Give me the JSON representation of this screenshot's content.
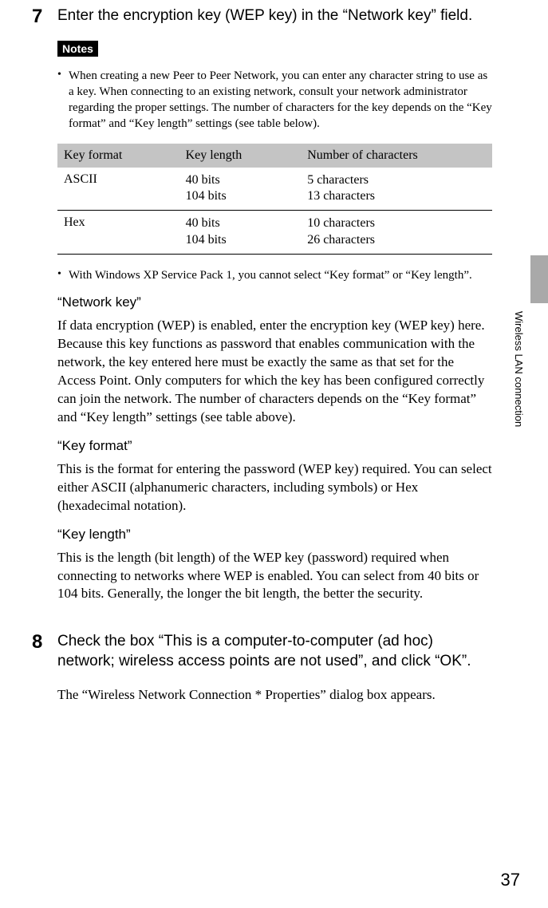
{
  "step7": {
    "number": "7",
    "title": "Enter the encryption key (WEP key) in the “Network key” field.",
    "notes_label": "Notes",
    "bullet1": "When creating a new Peer to Peer Network, you can enter any character string to use as a key. When connecting to an existing network, consult your network administrator regarding the proper settings. The number of characters for the key depends on the “Key format” and “Key length” settings (see table below).",
    "bullet2": "With Windows XP Service Pack 1, you cannot select “Key format” or “Key length”."
  },
  "table": {
    "headers": [
      "Key format",
      "Key length",
      "Number of characters"
    ],
    "rows": [
      {
        "format": "ASCII",
        "length": "40 bits\n104 bits",
        "chars": "5 characters\n13 characters"
      },
      {
        "format": "Hex",
        "length": "40 bits\n104 bits",
        "chars": "10 characters\n26 characters"
      }
    ],
    "header_bg": "#c4c4c4"
  },
  "sections": {
    "networkkey_h": "“Network key”",
    "networkkey_p": "If data encryption (WEP) is enabled, enter the encryption key (WEP key) here. Because this key functions as password that enables communication with the network, the key entered here must be exactly the same as that set for the Access Point. Only computers for which the key has been configured correctly can join the network. The number of characters depends on the “Key format” and “Key length” settings (see table above).",
    "keyformat_h": "“Key format”",
    "keyformat_p": "This is the format for entering the password (WEP key) required. You can select either ASCII (alphanumeric characters, including symbols) or Hex (hexadecimal notation).",
    "keylength_h": "“Key length”",
    "keylength_p": "This is the length (bit length) of the WEP key (password) required when connecting to networks where WEP is enabled. You can select from 40 bits or 104 bits. Generally, the longer the bit length, the better the security."
  },
  "step8": {
    "number": "8",
    "title": "Check the box “This is a computer-to-computer (ad hoc) network; wireless access points are not used”, and click “OK”.",
    "result": "The “Wireless Network Connection * Properties” dialog box appears."
  },
  "sidebar": {
    "text": "Wireless LAN connection",
    "bar_color": "#a9a9a9"
  },
  "page_number": "37"
}
